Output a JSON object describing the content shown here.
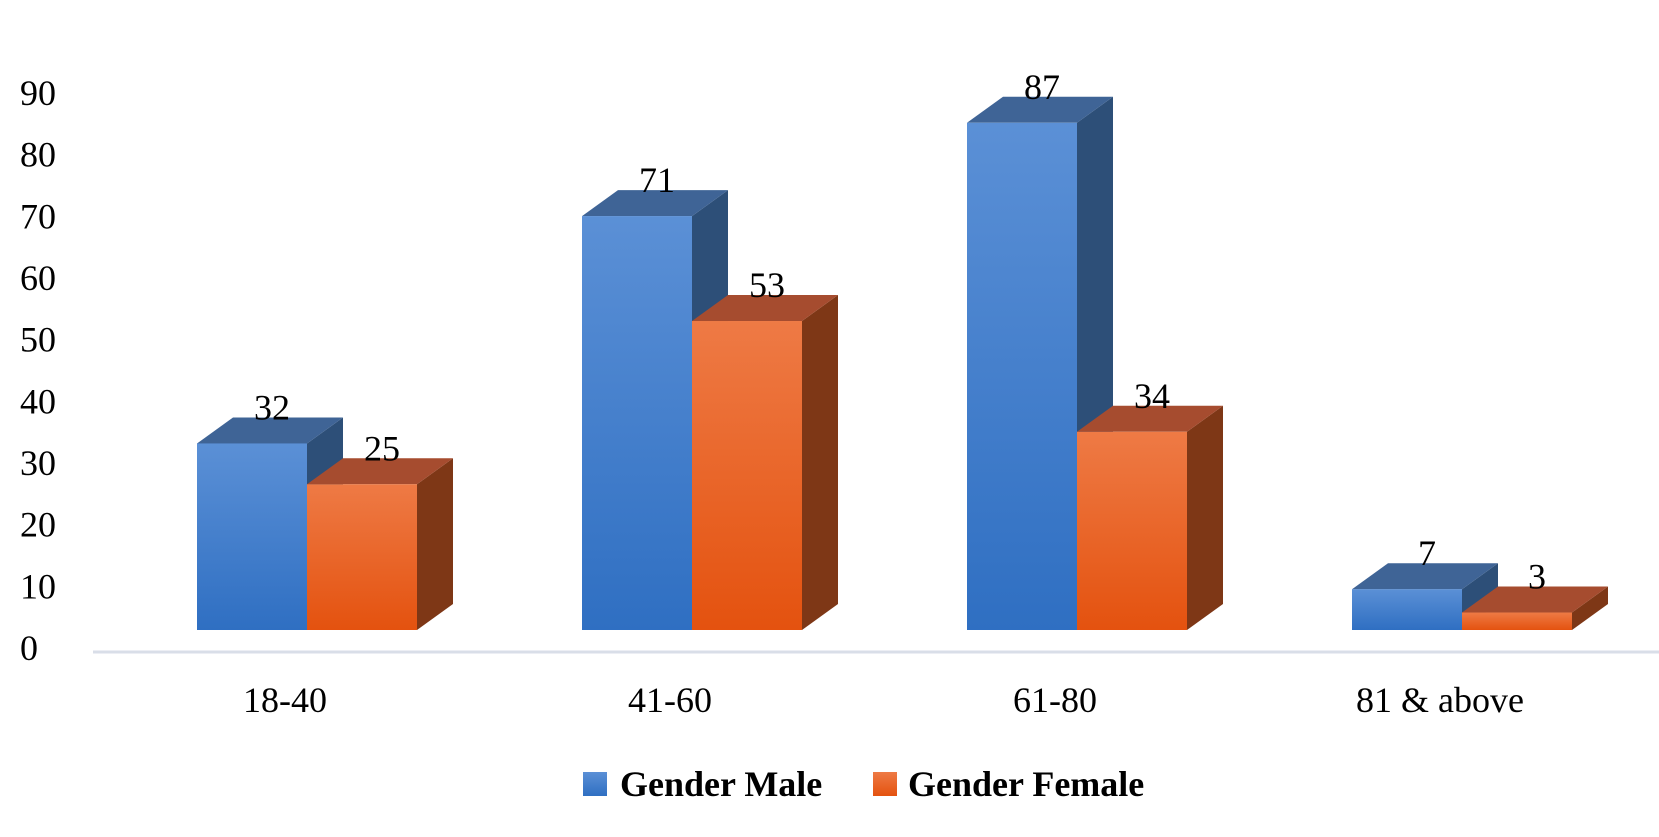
{
  "chart_data": {
    "type": "bar",
    "categories": [
      "18-40",
      "41-60",
      "61-80",
      "81 & above"
    ],
    "series": [
      {
        "name": "Gender Male",
        "values": [
          32,
          71,
          87,
          7
        ],
        "color": "#3E7FD3"
      },
      {
        "name": "Gender Female",
        "values": [
          25,
          53,
          34,
          3
        ],
        "color": "#F05E1C"
      }
    ],
    "title": "",
    "xlabel": "",
    "ylabel": "",
    "ylim": [
      0,
      90
    ],
    "yticks": [
      0,
      10,
      20,
      30,
      40,
      50,
      60,
      70,
      80,
      90
    ],
    "grid": false,
    "legend_position": "bottom",
    "style": "3d-column"
  }
}
